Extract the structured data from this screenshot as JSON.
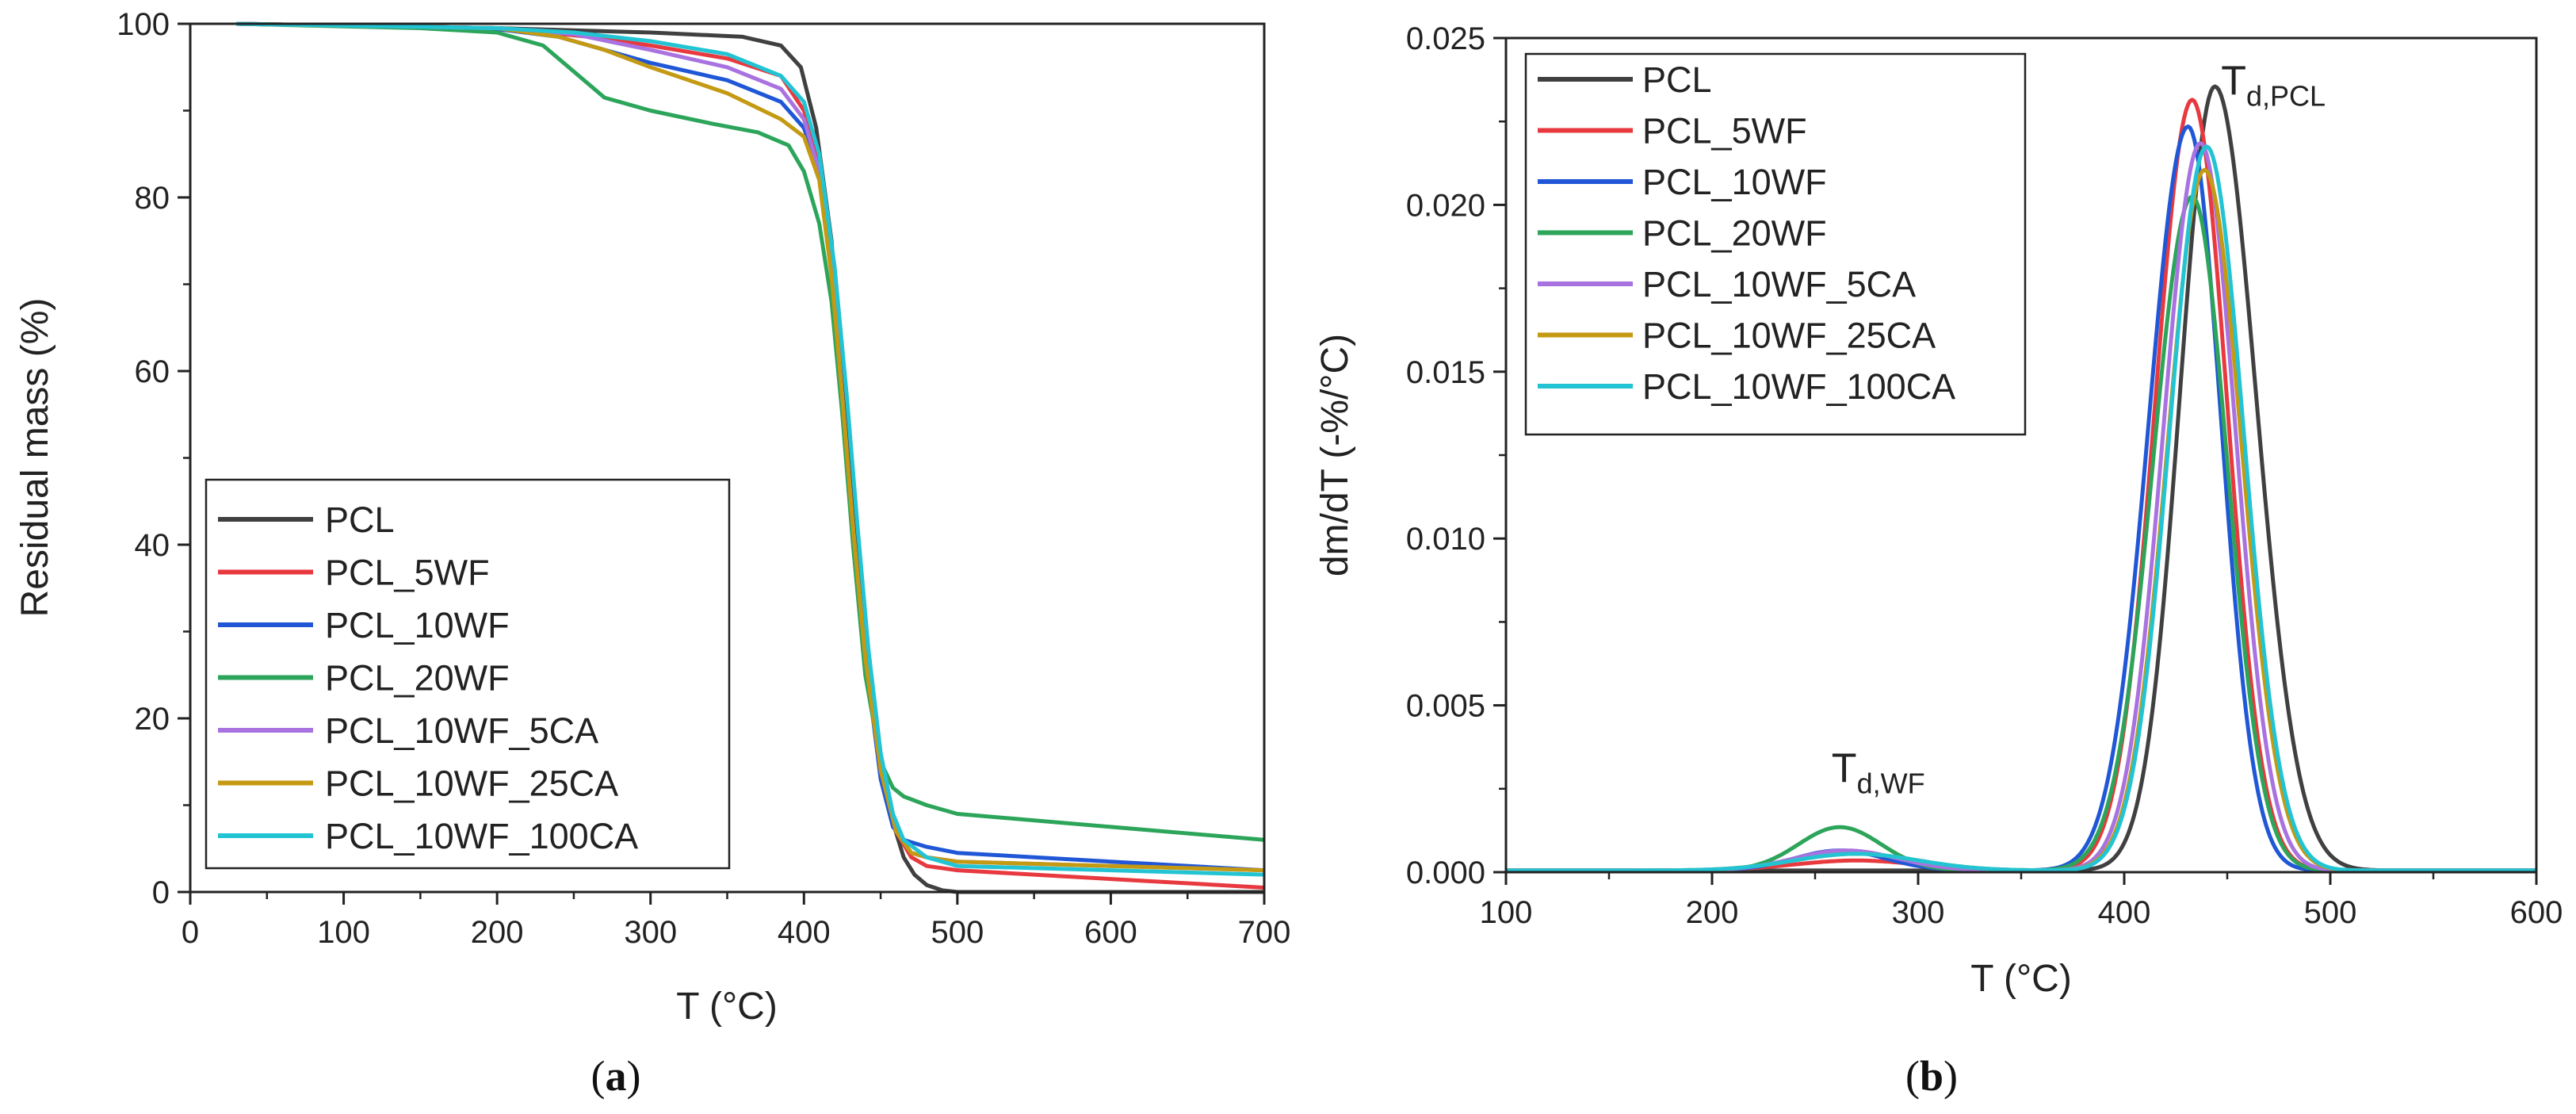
{
  "chart_data": [
    {
      "type": "line",
      "panel_label": "a",
      "xlabel": "T (°C)",
      "ylabel": "Residual mass (%)",
      "xlim": [
        0,
        700
      ],
      "ylim": [
        0,
        100
      ],
      "xticks": [
        0,
        100,
        200,
        300,
        400,
        500,
        600,
        700
      ],
      "yticks": [
        0,
        20,
        40,
        60,
        80,
        100
      ],
      "grid": false,
      "legend_position": "lower-left",
      "series": [
        {
          "name": "PCL",
          "color": "#404040",
          "x": [
            30,
            200,
            300,
            360,
            385,
            398,
            408,
            418,
            425,
            432,
            440,
            450,
            458,
            465,
            472,
            480,
            490,
            500,
            700
          ],
          "y": [
            100,
            99.5,
            99,
            98.5,
            97.5,
            95,
            88,
            75,
            60,
            45,
            30,
            15,
            8,
            4,
            2,
            0.8,
            0.2,
            0,
            0
          ]
        },
        {
          "name": "PCL_5WF",
          "color": "#e8393f",
          "x": [
            30,
            200,
            260,
            300,
            350,
            385,
            400,
            410,
            418,
            425,
            432,
            440,
            450,
            460,
            470,
            480,
            500,
            550,
            600,
            650,
            700
          ],
          "y": [
            100,
            99.5,
            98.5,
            97.5,
            96,
            94,
            90,
            84,
            72,
            57,
            42,
            27,
            14,
            7,
            4,
            3,
            2.5,
            2,
            1.5,
            1,
            0.5
          ]
        },
        {
          "name": "PCL_10WF",
          "color": "#1f57d6",
          "x": [
            30,
            200,
            240,
            270,
            300,
            350,
            385,
            400,
            410,
            418,
            425,
            432,
            440,
            450,
            458,
            465,
            480,
            500,
            600,
            700
          ],
          "y": [
            100,
            99.4,
            98.5,
            97,
            95.5,
            93.5,
            91,
            88,
            83,
            72,
            57,
            42,
            27,
            13,
            7.5,
            6,
            5.2,
            4.5,
            3.5,
            2.5
          ]
        },
        {
          "name": "PCL_20WF",
          "color": "#2ca55a",
          "x": [
            30,
            150,
            200,
            230,
            250,
            270,
            300,
            340,
            370,
            390,
            400,
            410,
            418,
            425,
            432,
            440,
            450,
            458,
            465,
            480,
            500,
            600,
            700
          ],
          "y": [
            100,
            99.5,
            99,
            97.5,
            94.5,
            91.5,
            90,
            88.5,
            87.5,
            86,
            83,
            77,
            68,
            55,
            40,
            25,
            15,
            12,
            11,
            10,
            9,
            7.5,
            6
          ]
        },
        {
          "name": "PCL_10WF_5CA",
          "color": "#a872e0",
          "x": [
            30,
            200,
            250,
            300,
            350,
            385,
            400,
            410,
            418,
            425,
            432,
            440,
            450,
            460,
            470,
            480,
            500,
            600,
            700
          ],
          "y": [
            100,
            99.5,
            98.8,
            97,
            95,
            92.5,
            89,
            83,
            72,
            57,
            42,
            27,
            14,
            7,
            4.5,
            4,
            3.5,
            3,
            2.5
          ]
        },
        {
          "name": "PCL_10WF_25CA",
          "color": "#c49a12",
          "x": [
            30,
            200,
            240,
            270,
            300,
            350,
            385,
            400,
            410,
            418,
            425,
            432,
            440,
            450,
            460,
            470,
            480,
            500,
            600,
            700
          ],
          "y": [
            100,
            99.5,
            98.5,
            97,
            95,
            92,
            89,
            87,
            82,
            71,
            57,
            42,
            27,
            14,
            7,
            4.5,
            4,
            3.5,
            3,
            2.5
          ]
        },
        {
          "name": "PCL_10WF_100CA",
          "color": "#22c4d4",
          "x": [
            30,
            200,
            250,
            300,
            350,
            385,
            400,
            410,
            420,
            428,
            435,
            442,
            450,
            458,
            465,
            480,
            500,
            600,
            700
          ],
          "y": [
            100,
            99.5,
            99,
            98,
            96.5,
            94,
            91,
            85,
            72,
            57,
            42,
            28,
            16,
            9,
            6,
            4,
            3,
            2.5,
            2
          ]
        }
      ]
    },
    {
      "type": "line",
      "panel_label": "b",
      "xlabel": "T (°C)",
      "ylabel": "dm/dT (-%/°C)",
      "xlim": [
        100,
        600
      ],
      "ylim": [
        0,
        0.025
      ],
      "xticks": [
        100,
        200,
        300,
        400,
        500,
        600
      ],
      "yticks": [
        0.0,
        0.005,
        0.01,
        0.015,
        0.02,
        0.025
      ],
      "ytick_labels": [
        "0.000",
        "0.005",
        "0.010",
        "0.015",
        "0.020",
        "0.025"
      ],
      "grid": false,
      "legend_position": "top-left",
      "annotations": [
        {
          "main": "T",
          "sub": "d,PCL",
          "x": 447,
          "y": 0.0233
        },
        {
          "main": "T",
          "sub": "d,WF",
          "x": 258,
          "y": 0.0027
        }
      ],
      "series": [
        {
          "name": "PCL",
          "color": "#404040",
          "peak_x": 444,
          "peak_y": 0.0235,
          "sigma_left": 17,
          "sigma_right": 20,
          "baseline": 5e-05,
          "bump_x": 0,
          "bump_y": 0,
          "bump_sigma": 20
        },
        {
          "name": "PCL_5WF",
          "color": "#e8393f",
          "peak_x": 433,
          "peak_y": 0.0231,
          "sigma_left": 18,
          "sigma_right": 17,
          "baseline": 5e-05,
          "bump_x": 270,
          "bump_y": 0.0003,
          "bump_sigma": 30
        },
        {
          "name": "PCL_10WF",
          "color": "#1f57d6",
          "peak_x": 431,
          "peak_y": 0.0223,
          "sigma_left": 19,
          "sigma_right": 16,
          "baseline": 5e-05,
          "bump_x": 262,
          "bump_y": 0.0006,
          "bump_sigma": 22
        },
        {
          "name": "PCL_20WF",
          "color": "#2ca55a",
          "peak_x": 433,
          "peak_y": 0.0202,
          "sigma_left": 19,
          "sigma_right": 17,
          "baseline": 5e-05,
          "bump_x": 262,
          "bump_y": 0.0013,
          "bump_sigma": 20
        },
        {
          "name": "PCL_10WF_5CA",
          "color": "#a872e0",
          "peak_x": 437,
          "peak_y": 0.0218,
          "sigma_left": 18,
          "sigma_right": 17,
          "baseline": 5e-05,
          "bump_x": 265,
          "bump_y": 0.0006,
          "bump_sigma": 25
        },
        {
          "name": "PCL_10WF_25CA",
          "color": "#c49a12",
          "peak_x": 439,
          "peak_y": 0.021,
          "sigma_left": 18,
          "sigma_right": 18,
          "baseline": 5e-05,
          "bump_x": 270,
          "bump_y": 0.0005,
          "bump_sigma": 30
        },
        {
          "name": "PCL_10WF_100CA",
          "color": "#22c4d4",
          "peak_x": 440,
          "peak_y": 0.0217,
          "sigma_left": 18,
          "sigma_right": 18,
          "baseline": 5e-05,
          "bump_x": 270,
          "bump_y": 0.0005,
          "bump_sigma": 30
        }
      ]
    }
  ]
}
